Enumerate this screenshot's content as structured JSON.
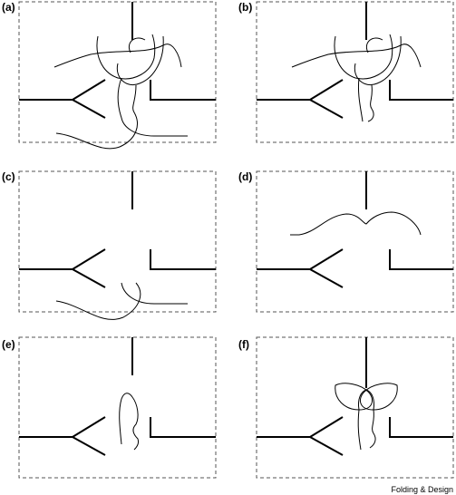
{
  "figure": {
    "panels": [
      {
        "label": "(a)"
      },
      {
        "label": "(b)"
      },
      {
        "label": "(c)"
      },
      {
        "label": "(d)"
      },
      {
        "label": "(e)"
      },
      {
        "label": "(f)"
      }
    ],
    "credit": "Folding & Design"
  }
}
